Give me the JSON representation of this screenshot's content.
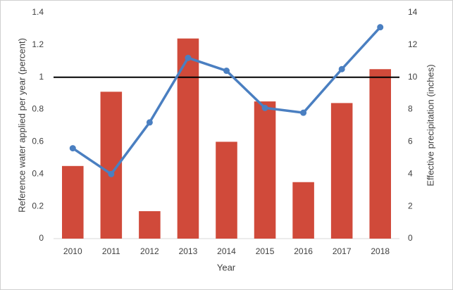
{
  "chart_data": {
    "type": "bar",
    "categories": [
      "2010",
      "2011",
      "2012",
      "2013",
      "2014",
      "2015",
      "2016",
      "2017",
      "2018"
    ],
    "series": [
      {
        "type": "bar",
        "color": "#d04a3a",
        "values": [
          0.45,
          0.91,
          0.17,
          1.24,
          0.6,
          0.85,
          0.35,
          0.84,
          1.05
        ]
      },
      {
        "type": "line",
        "color": "#4a7fc1",
        "axis": "y2",
        "values": [
          5.6,
          4.0,
          7.2,
          11.2,
          10.4,
          8.1,
          7.8,
          10.5,
          13.1
        ]
      }
    ],
    "hline": 1,
    "hline_color": "#000000",
    "x_label": "Year",
    "y_label": "Reference water applied per year (percent)",
    "y2_label": "Effective precipitation (inches)",
    "ylim": [
      0,
      1.4
    ],
    "yticks": [
      0,
      0.2,
      0.4,
      0.6,
      0.8,
      1,
      1.2,
      1.4
    ],
    "y2lim": [
      0,
      14
    ],
    "y2ticks": [
      0,
      2,
      4,
      6,
      8,
      10,
      12,
      14
    ],
    "grid": false
  }
}
